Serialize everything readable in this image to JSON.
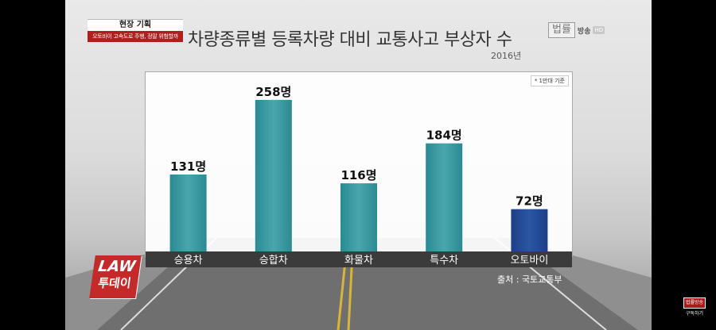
{
  "header": {
    "category": "현장 기획",
    "subtitle": "오토바이 고속도로 주행, 정말 위험할까",
    "title": "차량종류별 등록차량 대비 교통사고 부상자 수",
    "year": "2016년"
  },
  "logo": {
    "word": "법률",
    "sub": "방송",
    "hd": "HD"
  },
  "chart_note": "* 1만대 기준",
  "source": "출처 : 국토교통부",
  "law_logo": {
    "top": "LAW",
    "bottom": "투데이"
  },
  "channel_badge": {
    "icon": "법률방송",
    "label": "구독하기"
  },
  "colors": {
    "bar": "#2a8a92",
    "bar_highlight": "#1d3f86",
    "label_band": "#3b3b3b"
  },
  "chart_data": {
    "type": "bar",
    "title": "차량종류별 등록차량 대비 교통사고 부상자 수",
    "subtitle": "2016년",
    "categories": [
      "승용차",
      "승합차",
      "화물차",
      "특수차",
      "오토바이"
    ],
    "values": [
      131,
      258,
      116,
      184,
      72
    ],
    "value_labels": [
      "131명",
      "258명",
      "116명",
      "184명",
      "72명"
    ],
    "highlight_index": 4,
    "ylim": [
      0,
      270
    ],
    "grid": false,
    "legend": "none"
  }
}
